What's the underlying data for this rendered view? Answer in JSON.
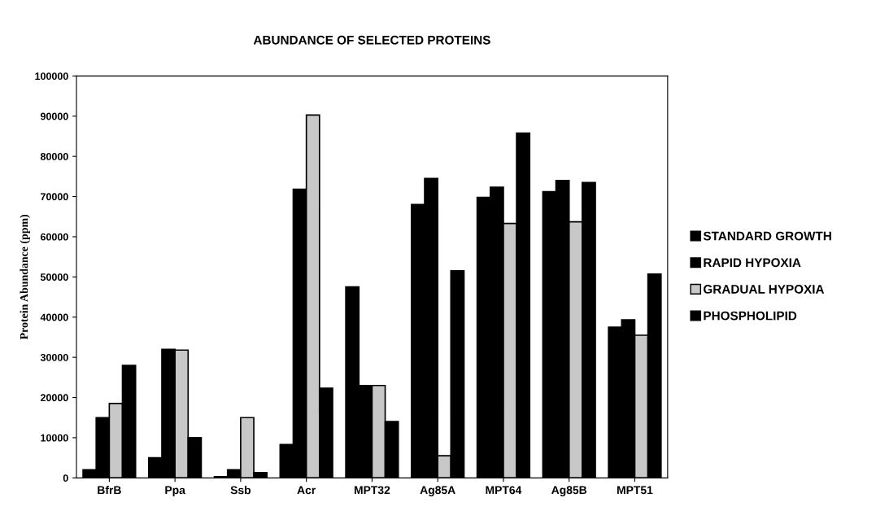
{
  "chart_data": {
    "type": "bar",
    "title": "ABUNDANCE OF SELECTED PROTEINS",
    "ylabel": "Protein Abundance (ppm)",
    "categories": [
      "BfrB",
      "Ppa",
      "Ssb",
      "Acr",
      "MPT32",
      "Ag85A",
      "MPT64",
      "Ag85B",
      "MPT51"
    ],
    "series": [
      {
        "name": "STANDARD GROWTH",
        "color": "#000000",
        "values": [
          2000,
          5000,
          300,
          8300,
          47500,
          68000,
          69800,
          71200,
          37500
        ]
      },
      {
        "name": "RAPID HYPOXIA",
        "color": "#000000",
        "values": [
          15000,
          32000,
          2000,
          71800,
          23000,
          74500,
          72300,
          74000,
          39300
        ]
      },
      {
        "name": "GRADUAL HYPOXIA",
        "color": "#c8c8c8",
        "values": [
          18500,
          31800,
          15000,
          90300,
          23000,
          5500,
          63300,
          63700,
          35500
        ]
      },
      {
        "name": "PHOSPHOLIPID",
        "color": "#000000",
        "values": [
          28000,
          10000,
          1300,
          22300,
          14000,
          51500,
          85800,
          73500,
          50700
        ]
      }
    ],
    "ylim": [
      0,
      100000
    ],
    "yticks": [
      0,
      10000,
      20000,
      30000,
      40000,
      50000,
      60000,
      70000,
      80000,
      90000,
      100000
    ],
    "grid": false,
    "legend": "right"
  }
}
